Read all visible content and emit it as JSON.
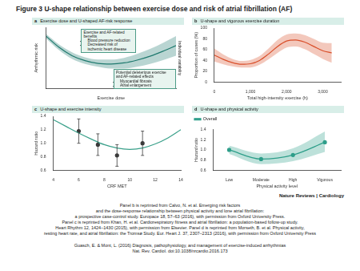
{
  "title": "Figure 3 U-shape relationship between exercise dose and risk of atrial fibrillation (AF)",
  "chart_data": [
    {
      "panel": "a",
      "type": "line",
      "title": "Exercise dose and U-shaped AF-risk response",
      "x_label": "Exercise dose",
      "y_label": "Arrhythmic risk",
      "x": [
        0,
        1,
        2,
        3,
        4,
        5,
        6,
        7,
        8,
        9,
        10
      ],
      "xlim": [
        0,
        10
      ],
      "ylim": [
        0,
        11
      ],
      "tick_labels": false,
      "grid": false,
      "series": [
        {
          "color": "#1f7a6e",
          "values": [
            9.4,
            7.4,
            5.9,
            5.0,
            4.5,
            4.4,
            4.6,
            5.1,
            5.8,
            6.7,
            7.7
          ],
          "lower": [
            9.0,
            6.9,
            5.3,
            4.4,
            3.9,
            3.6,
            3.6,
            3.9,
            4.4,
            5.1,
            5.9
          ],
          "upper": [
            9.8,
            7.9,
            6.5,
            5.6,
            5.2,
            5.2,
            5.5,
            6.2,
            7.1,
            8.2,
            9.4
          ]
        }
      ],
      "annotations": [
        {
          "text": "Exercise and AF-related benefits",
          "items": [
            "Blood pressure reduction",
            "Decreased risk of ischemic heart disease"
          ]
        },
        {
          "text": "Potential deleterious exercise and AF-related effects",
          "items": [
            "Myocardial fibrosis",
            "Atrial enlargement"
          ]
        },
        {
          "text": "Individual variability"
        }
      ]
    },
    {
      "panel": "b",
      "type": "line",
      "title": "U-shape and vigorous exercise duration",
      "x_label": "Total high-intensity exercise (h)",
      "y_label": "Proportion of cases (%)",
      "x": [
        0,
        250,
        500,
        750,
        1000,
        1250,
        1500,
        1750,
        2000,
        2250,
        2500,
        2750,
        3000,
        3250
      ],
      "xlim": [
        0,
        3500
      ],
      "xticks": [
        0,
        {
          "value": 1000,
          "label": "1,000"
        },
        {
          "value": 2000,
          "label": "2,000"
        },
        {
          "value": 3000,
          "label": "3,000"
        }
      ],
      "ylim": [
        0,
        100
      ],
      "yticks": [
        0,
        20,
        40,
        60,
        80,
        100
      ],
      "grid": false,
      "series": [
        {
          "color": "#d94f2b",
          "values": [
            50,
            42,
            36,
            33,
            34,
            40,
            52,
            66,
            76,
            78,
            74,
            66,
            58,
            54
          ],
          "lower": [
            38,
            33,
            29,
            27,
            27,
            32,
            42,
            54,
            64,
            66,
            61,
            52,
            43,
            36
          ],
          "upper": [
            62,
            51,
            43,
            39,
            41,
            48,
            62,
            78,
            88,
            90,
            87,
            80,
            73,
            72
          ]
        }
      ]
    },
    {
      "panel": "c",
      "type": "line",
      "title": "U-shape and exercise intensity",
      "x_label": "CRF MET",
      "y_label": "Hazard ratio",
      "xlim": [
        4,
        14
      ],
      "xticks": [
        4,
        6,
        8,
        10,
        12,
        14
      ],
      "ylim": [
        0.6,
        1.4
      ],
      "yticks": [
        0.6,
        0.8,
        {
          "value": 1,
          "label": "1.0"
        },
        1.2,
        1.4
      ],
      "grid": false,
      "series": [
        {
          "type": "line",
          "marker": "none",
          "color": "#3aa08a",
          "x": [
            4,
            5,
            6,
            7,
            8,
            9,
            10,
            11,
            12,
            13,
            14
          ],
          "values": [
            1.35,
            1.25,
            1.15,
            1.06,
            0.98,
            0.93,
            0.91,
            0.93,
            0.99,
            1.08,
            1.2
          ]
        },
        {
          "type": "scatter",
          "marker": "circle",
          "color": "#3a3a3a",
          "x": [
            6,
            7.5,
            9,
            11
          ],
          "values": [
            1.18,
            0.98,
            0.82,
            1.0
          ],
          "error_low": [
            1.0,
            0.82,
            0.66,
            0.82
          ],
          "error_high": [
            1.36,
            1.14,
            0.98,
            1.18
          ]
        }
      ]
    },
    {
      "panel": "d",
      "type": "line",
      "title": "U-shape and physical activity",
      "x_label": "Physical activity level",
      "y_label": "Hazard ratio",
      "categories": [
        "Low",
        "Moderate",
        "High",
        "Vigorous"
      ],
      "ylim": [
        0.6,
        1.4
      ],
      "yticks": [
        0.6,
        0.8,
        {
          "value": 1,
          "label": "1.0"
        },
        1.2,
        1.4
      ],
      "grid": false,
      "legend": "top-left",
      "series": [
        {
          "name": "Overall",
          "color": "#2e9e8a",
          "marker": "circle",
          "values": [
            1.0,
            0.82,
            0.9,
            1.15
          ],
          "lower": [
            0.92,
            0.72,
            0.78,
            0.96
          ],
          "upper": [
            1.08,
            0.93,
            1.03,
            1.36
          ]
        }
      ]
    }
  ],
  "credit": "Nature Reviews | Cardiology",
  "caption": [
    "Panel b is reprinted from Calvo, N. et al. Emerging risk factors",
    "and the dose-response relationship between physical activity and lone atrial fibrillation:",
    "a prospective case-control study. Europace 18, 57–63 (2016), with permission from Oxford University Press.",
    "Panel c is reprinted from Khan, H. et al. Cardiorespiratory fitness and atrial fibrillation: a population-based follow-up study.",
    "Heart Rhythm 12, 1424–1430 (2015), with permission from Elsevier. Panel d is reprinted from Morseth, B. et al. Physical activity,",
    "resting heart rate, and atrial fibrillation: the Tromsø Study. Eur. Heart J. 37, 2307–2313 (2016), with permission from Oxford University Press"
  ],
  "citation": [
    "Guasch, E. & Mont, L. (2016) Diagnosis, pathophysiology, and management of exercise-induced arrhythmias",
    "Nat. Rev. Cardiol. doi:10.1038/nrcardio.2016.173"
  ]
}
